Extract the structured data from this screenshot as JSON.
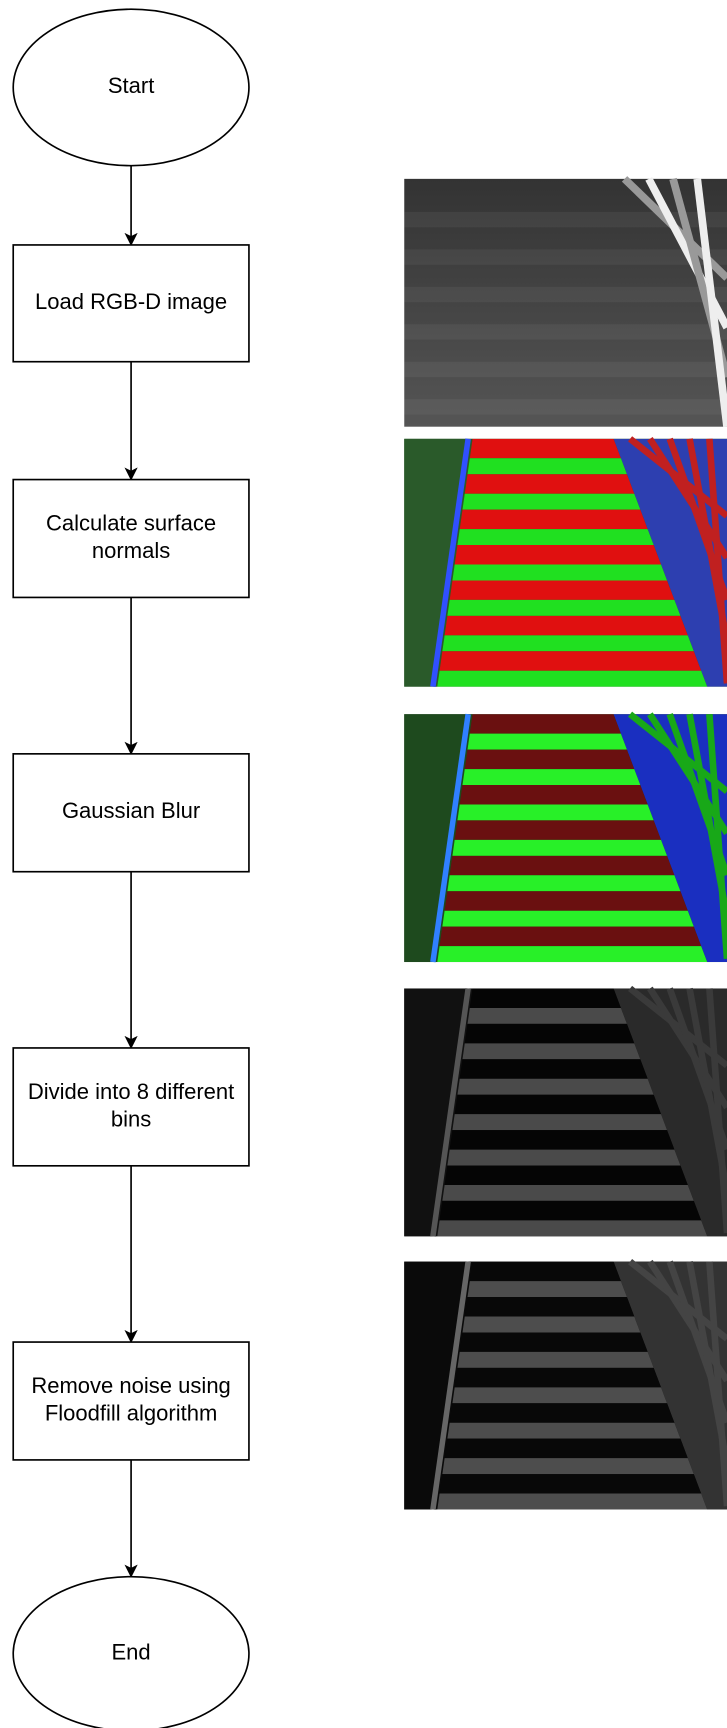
{
  "nodes": [
    {
      "label": "Start"
    },
    {
      "label": "Load RGB-D image"
    },
    {
      "lines": [
        "Calculate surface",
        "normals"
      ]
    },
    {
      "label": "Gaussian Blur"
    },
    {
      "lines": [
        "Divide into 8 different",
        "bins"
      ]
    },
    {
      "lines": [
        "Remove noise using",
        "Floodfill algorithm"
      ]
    },
    {
      "label": "End"
    }
  ]
}
